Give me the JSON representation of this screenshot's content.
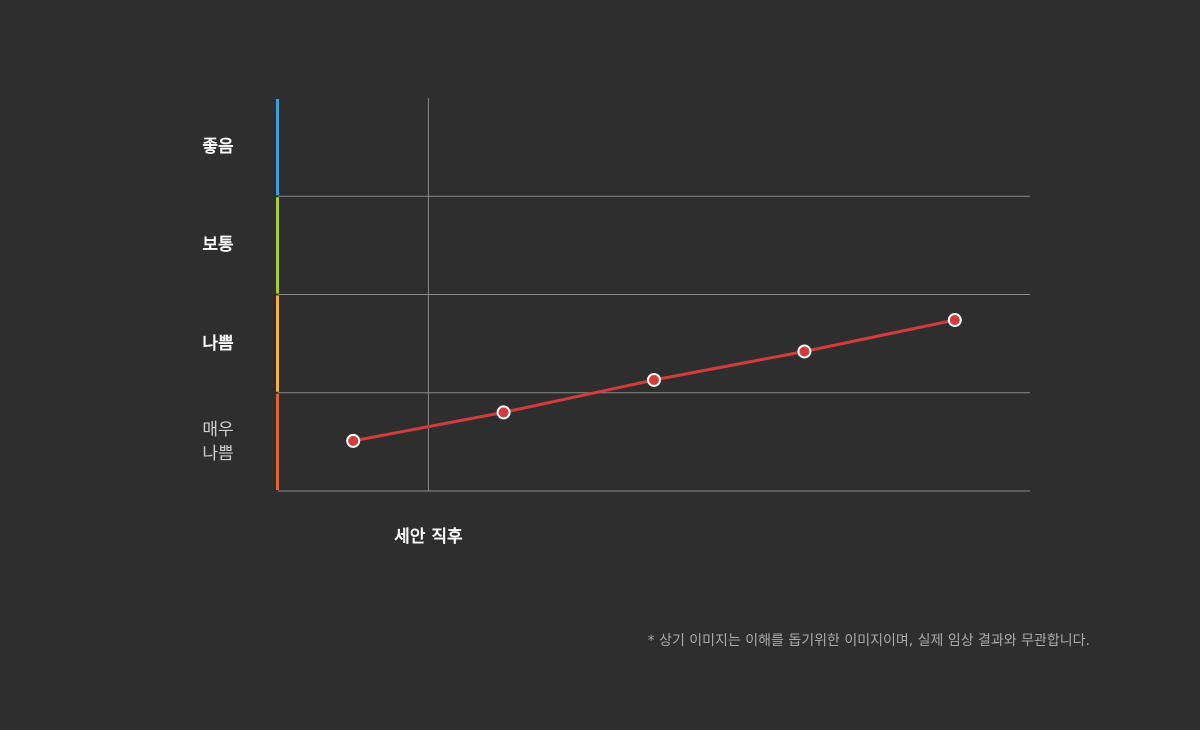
{
  "chart_data": {
    "type": "line",
    "bands": [
      {
        "label": "매우\n나쁨",
        "color": "#e0623a"
      },
      {
        "label": "나쁨",
        "color": "#f0b444"
      },
      {
        "label": "보통",
        "color": "#a6cc3a"
      },
      {
        "label": "좋음",
        "color": "#3aa0d8"
      }
    ],
    "ylim": [
      0,
      4
    ],
    "yticks": [
      0,
      1,
      2,
      3
    ],
    "xlim": [
      0,
      10
    ],
    "x": [
      1,
      3,
      5,
      7,
      9
    ],
    "series": [
      {
        "color": "#d23c3c",
        "values": [
          0.51,
          0.8,
          1.13,
          1.42,
          1.74
        ]
      }
    ],
    "annotations": [
      {
        "text": "세안 직후",
        "x": 2
      }
    ],
    "footnote": "* 상기 이미지는 이해를 돕기위한 이미지이며, 실제 임상 결과와 무관합니다.",
    "grid": true
  }
}
